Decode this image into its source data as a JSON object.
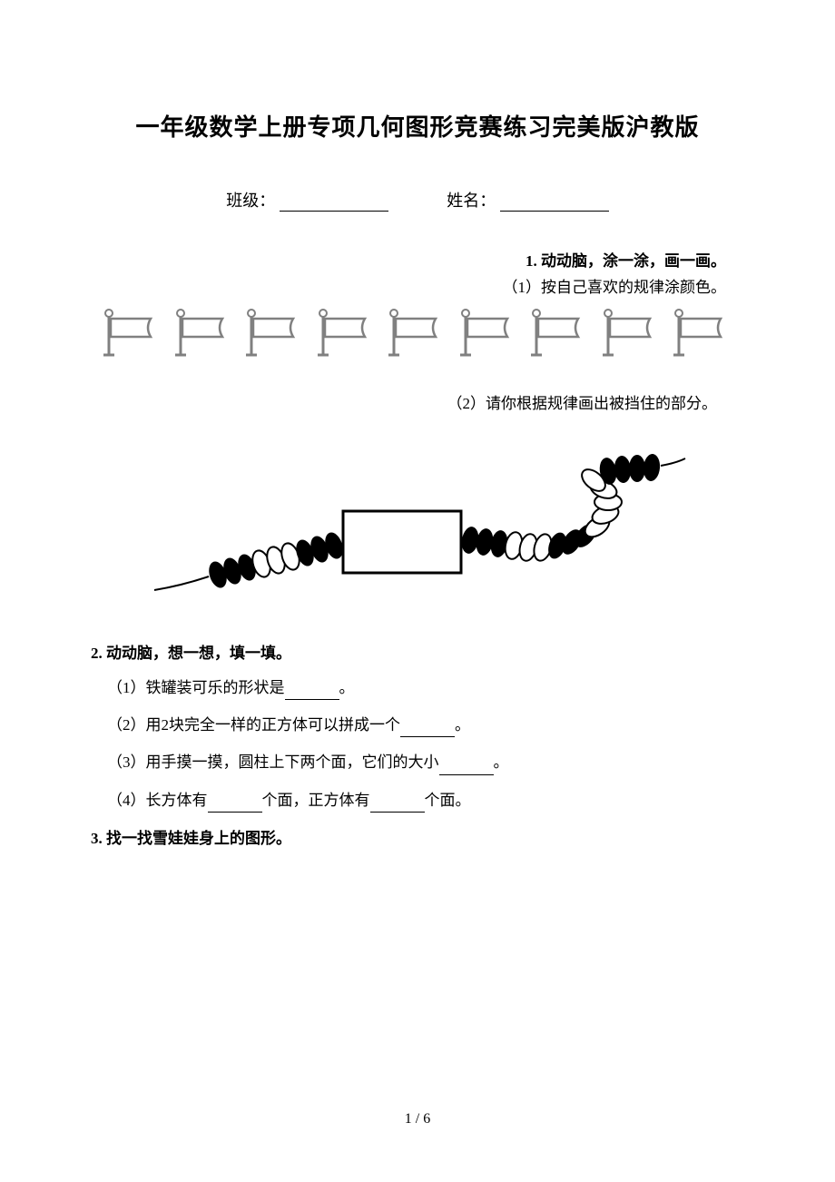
{
  "title": "一年级数学上册专项几何图形竞赛练习完美版沪教版",
  "header": {
    "class_label": "班级：",
    "name_label": "姓名："
  },
  "q1": {
    "number": "1.",
    "title": "动动脑，涂一涂，画一画。",
    "sub1": "（1）按自己喜欢的规律涂颜色。",
    "sub2": "（2）请你根据规律画出被挡住的部分。",
    "flag_count": 9,
    "flag_color": "#a0a0a0",
    "flag_stroke": "#808080"
  },
  "q2": {
    "title": "2.  动动脑，想一想，填一填。",
    "items": [
      {
        "prefix": "（1）铁罐装可乐的形状是",
        "suffix": "。"
      },
      {
        "prefix": "（2）用2块完全一样的正方体可以拼成一个",
        "suffix": "。"
      },
      {
        "prefix": "（3）用手摸一摸，圆柱上下两个面，它们的大小",
        "suffix": "。"
      }
    ],
    "item4_p1": "（4）长方体有",
    "item4_mid": "个面，正方体有",
    "item4_suf": "个面。"
  },
  "q3": {
    "title": "3.  找一找雪娃娃身上的图形。"
  },
  "beads": {
    "black": "#000000",
    "white": "#ffffff",
    "stroke": "#000000",
    "box_stroke": "#000000"
  },
  "footer": "1 / 6"
}
